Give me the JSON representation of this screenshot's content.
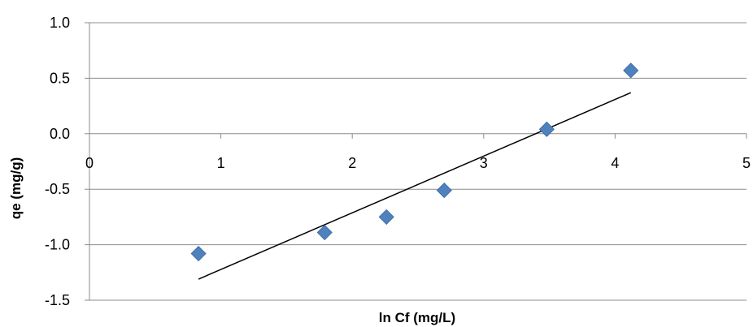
{
  "chart_data": {
    "type": "scatter",
    "title": "",
    "xlabel": "ln Cf (mg/L)",
    "ylabel": "qe (mg/g)",
    "xlim": [
      0,
      5
    ],
    "ylim": [
      -1.5,
      1.0
    ],
    "x_ticks": [
      "0",
      "1",
      "2",
      "3",
      "4",
      "5"
    ],
    "y_ticks": [
      "1.0",
      "0.5",
      "0.0",
      "-0.5",
      "-1.0",
      "-1.5"
    ],
    "x_tick_values": [
      0,
      1,
      2,
      3,
      4,
      5
    ],
    "y_tick_values": [
      1.0,
      0.5,
      0.0,
      -0.5,
      -1.0,
      -1.5
    ],
    "grid": "horizontal",
    "legend": "none",
    "series": [
      {
        "marker": "diamond",
        "color": "#4F81BD",
        "x": [
          0.83,
          1.79,
          2.26,
          2.7,
          3.48,
          4.12
        ],
        "y": [
          -1.08,
          -0.89,
          -0.75,
          -0.51,
          0.04,
          0.57
        ]
      }
    ],
    "trendline": {
      "type": "linear",
      "color": "#000000",
      "x": [
        0.83,
        4.12
      ],
      "y": [
        -1.31,
        0.37
      ]
    }
  }
}
